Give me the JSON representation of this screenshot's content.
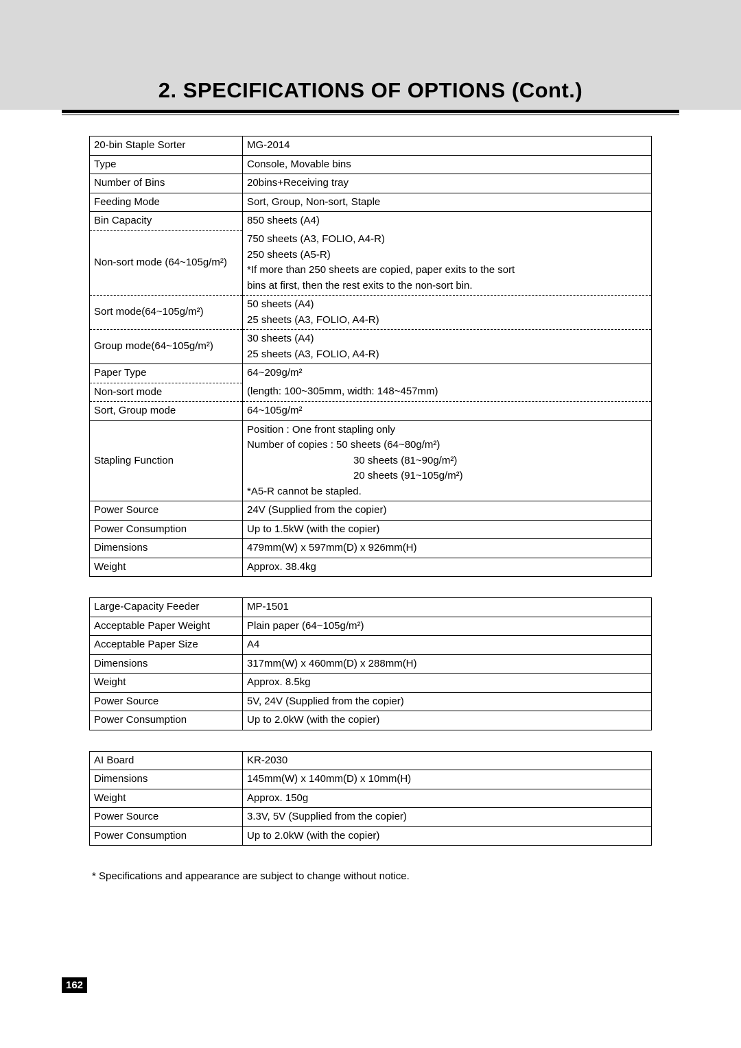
{
  "heading": "2. SPECIFICATIONS OF OPTIONS (Cont.)",
  "page_number": "162",
  "footnote": "*  Specifications and appearance are subject to change without notice.",
  "table1": {
    "r0_l": "20-bin Staple Sorter",
    "r0_v": "MG-2014",
    "r1_l": "Type",
    "r1_v": "Console, Movable bins",
    "r2_l": "Number of Bins",
    "r2_v": "20bins+Receiving tray",
    "r3_l": "Feeding Mode",
    "r3_v": "Sort, Group, Non-sort, Staple",
    "r4_l": "Bin Capacity",
    "r4_v": "850 sheets (A4)",
    "r5_l": "Non-sort mode (64~105g/m²)",
    "r5_v": "750 sheets (A3, FOLIO, A4-R)\n250 sheets (A5-R)\n*If more than 250 sheets are copied, paper exits to the sort\n bins at first, then the rest exits to the non-sort bin.",
    "r6_l": "Sort mode(64~105g/m²)",
    "r6_v": "50 sheets (A4)\n25 sheets (A3, FOLIO, A4-R)",
    "r7_l": "Group mode(64~105g/m²)",
    "r7_v": "30 sheets (A4)\n25 sheets (A3, FOLIO, A4-R)",
    "r8_l": "Paper Type",
    "r8_v": "64~209g/m²",
    "r9_l": "Non-sort mode",
    "r9_v": "(length: 100~305mm, width: 148~457mm)",
    "r10_l": "Sort, Group mode",
    "r10_v": "64~105g/m²",
    "r11_l": "Stapling Function",
    "r11_v1": "Position : One front stapling only",
    "r11_v2": "Number of copies : 50 sheets (64~80g/m²)",
    "r11_v3": "30 sheets (81~90g/m²)",
    "r11_v4": "20 sheets (91~105g/m²)",
    "r11_v5": "*A5-R cannot be stapled.",
    "r12_l": "Power Source",
    "r12_v": "24V (Supplied from the copier)",
    "r13_l": "Power Consumption",
    "r13_v": "Up to 1.5kW (with the copier)",
    "r14_l": "Dimensions",
    "r14_v": "479mm(W) x 597mm(D) x 926mm(H)",
    "r15_l": "Weight",
    "r15_v": "Approx. 38.4kg"
  },
  "table2": {
    "r0_l": "Large-Capacity Feeder",
    "r0_v": "MP-1501",
    "r1_l": "Acceptable Paper Weight",
    "r1_v": "Plain paper (64~105g/m²)",
    "r2_l": "Acceptable Paper Size",
    "r2_v": "A4",
    "r3_l": "Dimensions",
    "r3_v": "317mm(W) x 460mm(D) x 288mm(H)",
    "r4_l": "Weight",
    "r4_v": "Approx. 8.5kg",
    "r5_l": "Power Source",
    "r5_v": "5V, 24V (Supplied from the copier)",
    "r6_l": "Power Consumption",
    "r6_v": "Up to 2.0kW (with the copier)"
  },
  "table3": {
    "r0_l": "AI Board",
    "r0_v": "KR-2030",
    "r1_l": "Dimensions",
    "r1_v": "145mm(W) x 140mm(D) x 10mm(H)",
    "r2_l": "Weight",
    "r2_v": "Approx. 150g",
    "r3_l": "Power Source",
    "r3_v": "3.3V, 5V (Supplied from the copier)",
    "r4_l": "Power Consumption",
    "r4_v": "Up to 2.0kW (with the copier)"
  }
}
